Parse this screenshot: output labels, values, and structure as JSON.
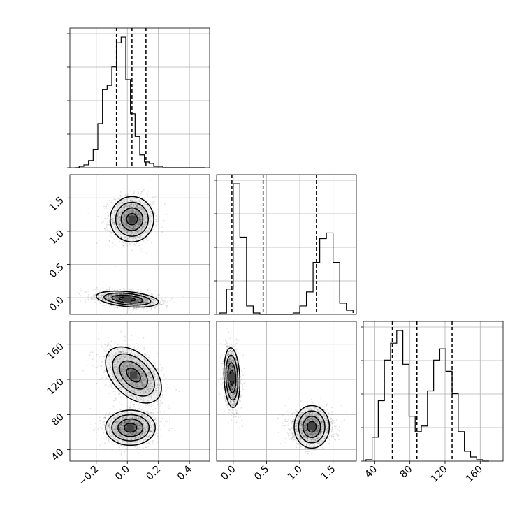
{
  "chart_data": {
    "type": "corner",
    "parameters": [
      {
        "range": [
          -0.37,
          0.53
        ],
        "ticks": [
          -0.2,
          0.0,
          0.2,
          0.4
        ],
        "tick_labels": [
          "−0.2",
          "0.0",
          "0.2",
          "0.4"
        ]
      },
      {
        "range": [
          -0.25,
          1.85
        ],
        "ticks": [
          0.0,
          0.5,
          1.0,
          1.5
        ],
        "tick_labels": [
          "0.0",
          "0.5",
          "1.0",
          "1.5"
        ]
      },
      {
        "range": [
          27,
          186
        ],
        "ticks": [
          40,
          80,
          120,
          160
        ],
        "tick_labels": [
          "40",
          "80",
          "120",
          "160"
        ]
      }
    ],
    "grid": true,
    "diagonal_histograms": [
      {
        "parameter": 0,
        "bin_edges": [
          -0.34,
          -0.31,
          -0.28,
          -0.25,
          -0.22,
          -0.19,
          -0.16,
          -0.13,
          -0.1,
          -0.07,
          -0.04,
          -0.01,
          0.02,
          0.05,
          0.08,
          0.11,
          0.14,
          0.17,
          0.2,
          0.23,
          0.26,
          0.29,
          0.32,
          0.35,
          0.38,
          0.41,
          0.44,
          0.47,
          0.5
        ],
        "counts": [
          0,
          0.01,
          0.02,
          0.05,
          0.13,
          0.31,
          0.55,
          0.58,
          0.71,
          0.88,
          0.92,
          0.62,
          0.38,
          0.22,
          0.09,
          0.04,
          0.03,
          0.01,
          0.01,
          0.0,
          0.0,
          0.0,
          0.0,
          0.0,
          0.0,
          0.0,
          0.0,
          0.0
        ],
        "quantiles": [
          -0.07,
          0.03,
          0.12
        ]
      },
      {
        "parameter": 1,
        "bin_edges": [
          -0.2,
          -0.1,
          0.0,
          0.1,
          0.2,
          0.3,
          0.4,
          0.5,
          0.6,
          0.7,
          0.8,
          0.9,
          1.0,
          1.1,
          1.2,
          1.3,
          1.4,
          1.5,
          1.6,
          1.7,
          1.8
        ],
        "counts": [
          0.01,
          0.18,
          0.93,
          0.55,
          0.06,
          0.01,
          0.0,
          0.0,
          0.0,
          0.0,
          0.0,
          0.01,
          0.06,
          0.16,
          0.37,
          0.54,
          0.58,
          0.37,
          0.08,
          0.03,
          0.01
        ],
        "quantiles": [
          -0.02,
          0.45,
          1.25
        ]
      },
      {
        "parameter": 2,
        "bin_edges": [
          30,
          37,
          44,
          51,
          58,
          65,
          72,
          79,
          86,
          93,
          100,
          107,
          114,
          121,
          128,
          135,
          142,
          149,
          156,
          163,
          170
        ],
        "counts": [
          0.01,
          0.17,
          0.43,
          0.72,
          0.84,
          0.93,
          0.69,
          0.32,
          0.21,
          0.25,
          0.5,
          0.72,
          0.8,
          0.64,
          0.48,
          0.21,
          0.07,
          0.03,
          0.01,
          0.0
        ],
        "quantiles": [
          60,
          88,
          128
        ]
      }
    ],
    "two_d_panels": [
      {
        "x_parameter": 0,
        "y_parameter": 1,
        "clusters": [
          {
            "center": [
              0.03,
              1.18
            ],
            "sx": 0.07,
            "sy": 0.17,
            "rho": 0.0,
            "weight": 0.5
          },
          {
            "center": [
              0.0,
              -0.02
            ],
            "sx": 0.1,
            "sy": 0.06,
            "rho": -0.35,
            "weight": 0.5
          }
        ]
      },
      {
        "x_parameter": 0,
        "y_parameter": 2,
        "clusters": [
          {
            "center": [
              0.04,
              125
            ],
            "sx": 0.09,
            "sy": 16,
            "rho": -0.45,
            "weight": 0.5
          },
          {
            "center": [
              0.02,
              65
            ],
            "sx": 0.08,
            "sy": 10,
            "rho": 0.0,
            "weight": 0.5
          }
        ]
      },
      {
        "x_parameter": 1,
        "y_parameter": 2,
        "clusters": [
          {
            "center": [
              -0.02,
              122
            ],
            "sx": 0.06,
            "sy": 17,
            "rho": -0.15,
            "weight": 0.5
          },
          {
            "center": [
              1.18,
              66
            ],
            "sx": 0.16,
            "sy": 10,
            "rho": 0.0,
            "weight": 0.5
          }
        ]
      }
    ],
    "contour_levels_sigma": [
      0.5,
      1.0,
      1.5,
      2.0
    ]
  }
}
